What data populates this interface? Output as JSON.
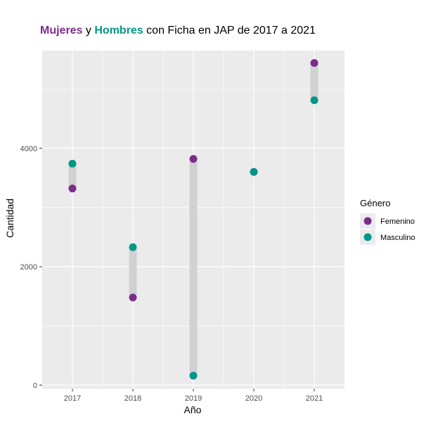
{
  "chart_data": {
    "type": "scatter",
    "title": {
      "parts": [
        {
          "text": "Mujeres",
          "bold": true,
          "color": "#7b2d8b"
        },
        {
          "text": " y ",
          "bold": false,
          "color": "#000000"
        },
        {
          "text": "Hombres",
          "bold": true,
          "color": "#009688"
        },
        {
          "text": " con Ficha en JAP de 2017 a 2021",
          "bold": false,
          "color": "#000000"
        }
      ]
    },
    "xlabel": "Año",
    "ylabel": "Cantidad",
    "categories": [
      "2017",
      "2018",
      "2019",
      "2020",
      "2021"
    ],
    "yticks": [
      0,
      2000,
      4000
    ],
    "ylim": [
      -60,
      5650
    ],
    "grid": true,
    "legend": {
      "title": "Género",
      "position": "right"
    },
    "series": [
      {
        "name": "Femenino",
        "color": "#7b2d8b",
        "values": [
          3320,
          1480,
          3820,
          3600,
          5440
        ]
      },
      {
        "name": "Masculino",
        "color": "#009688",
        "values": [
          3740,
          2330,
          160,
          3600,
          4810
        ]
      }
    ],
    "segment_color": "#d1d1d1"
  }
}
